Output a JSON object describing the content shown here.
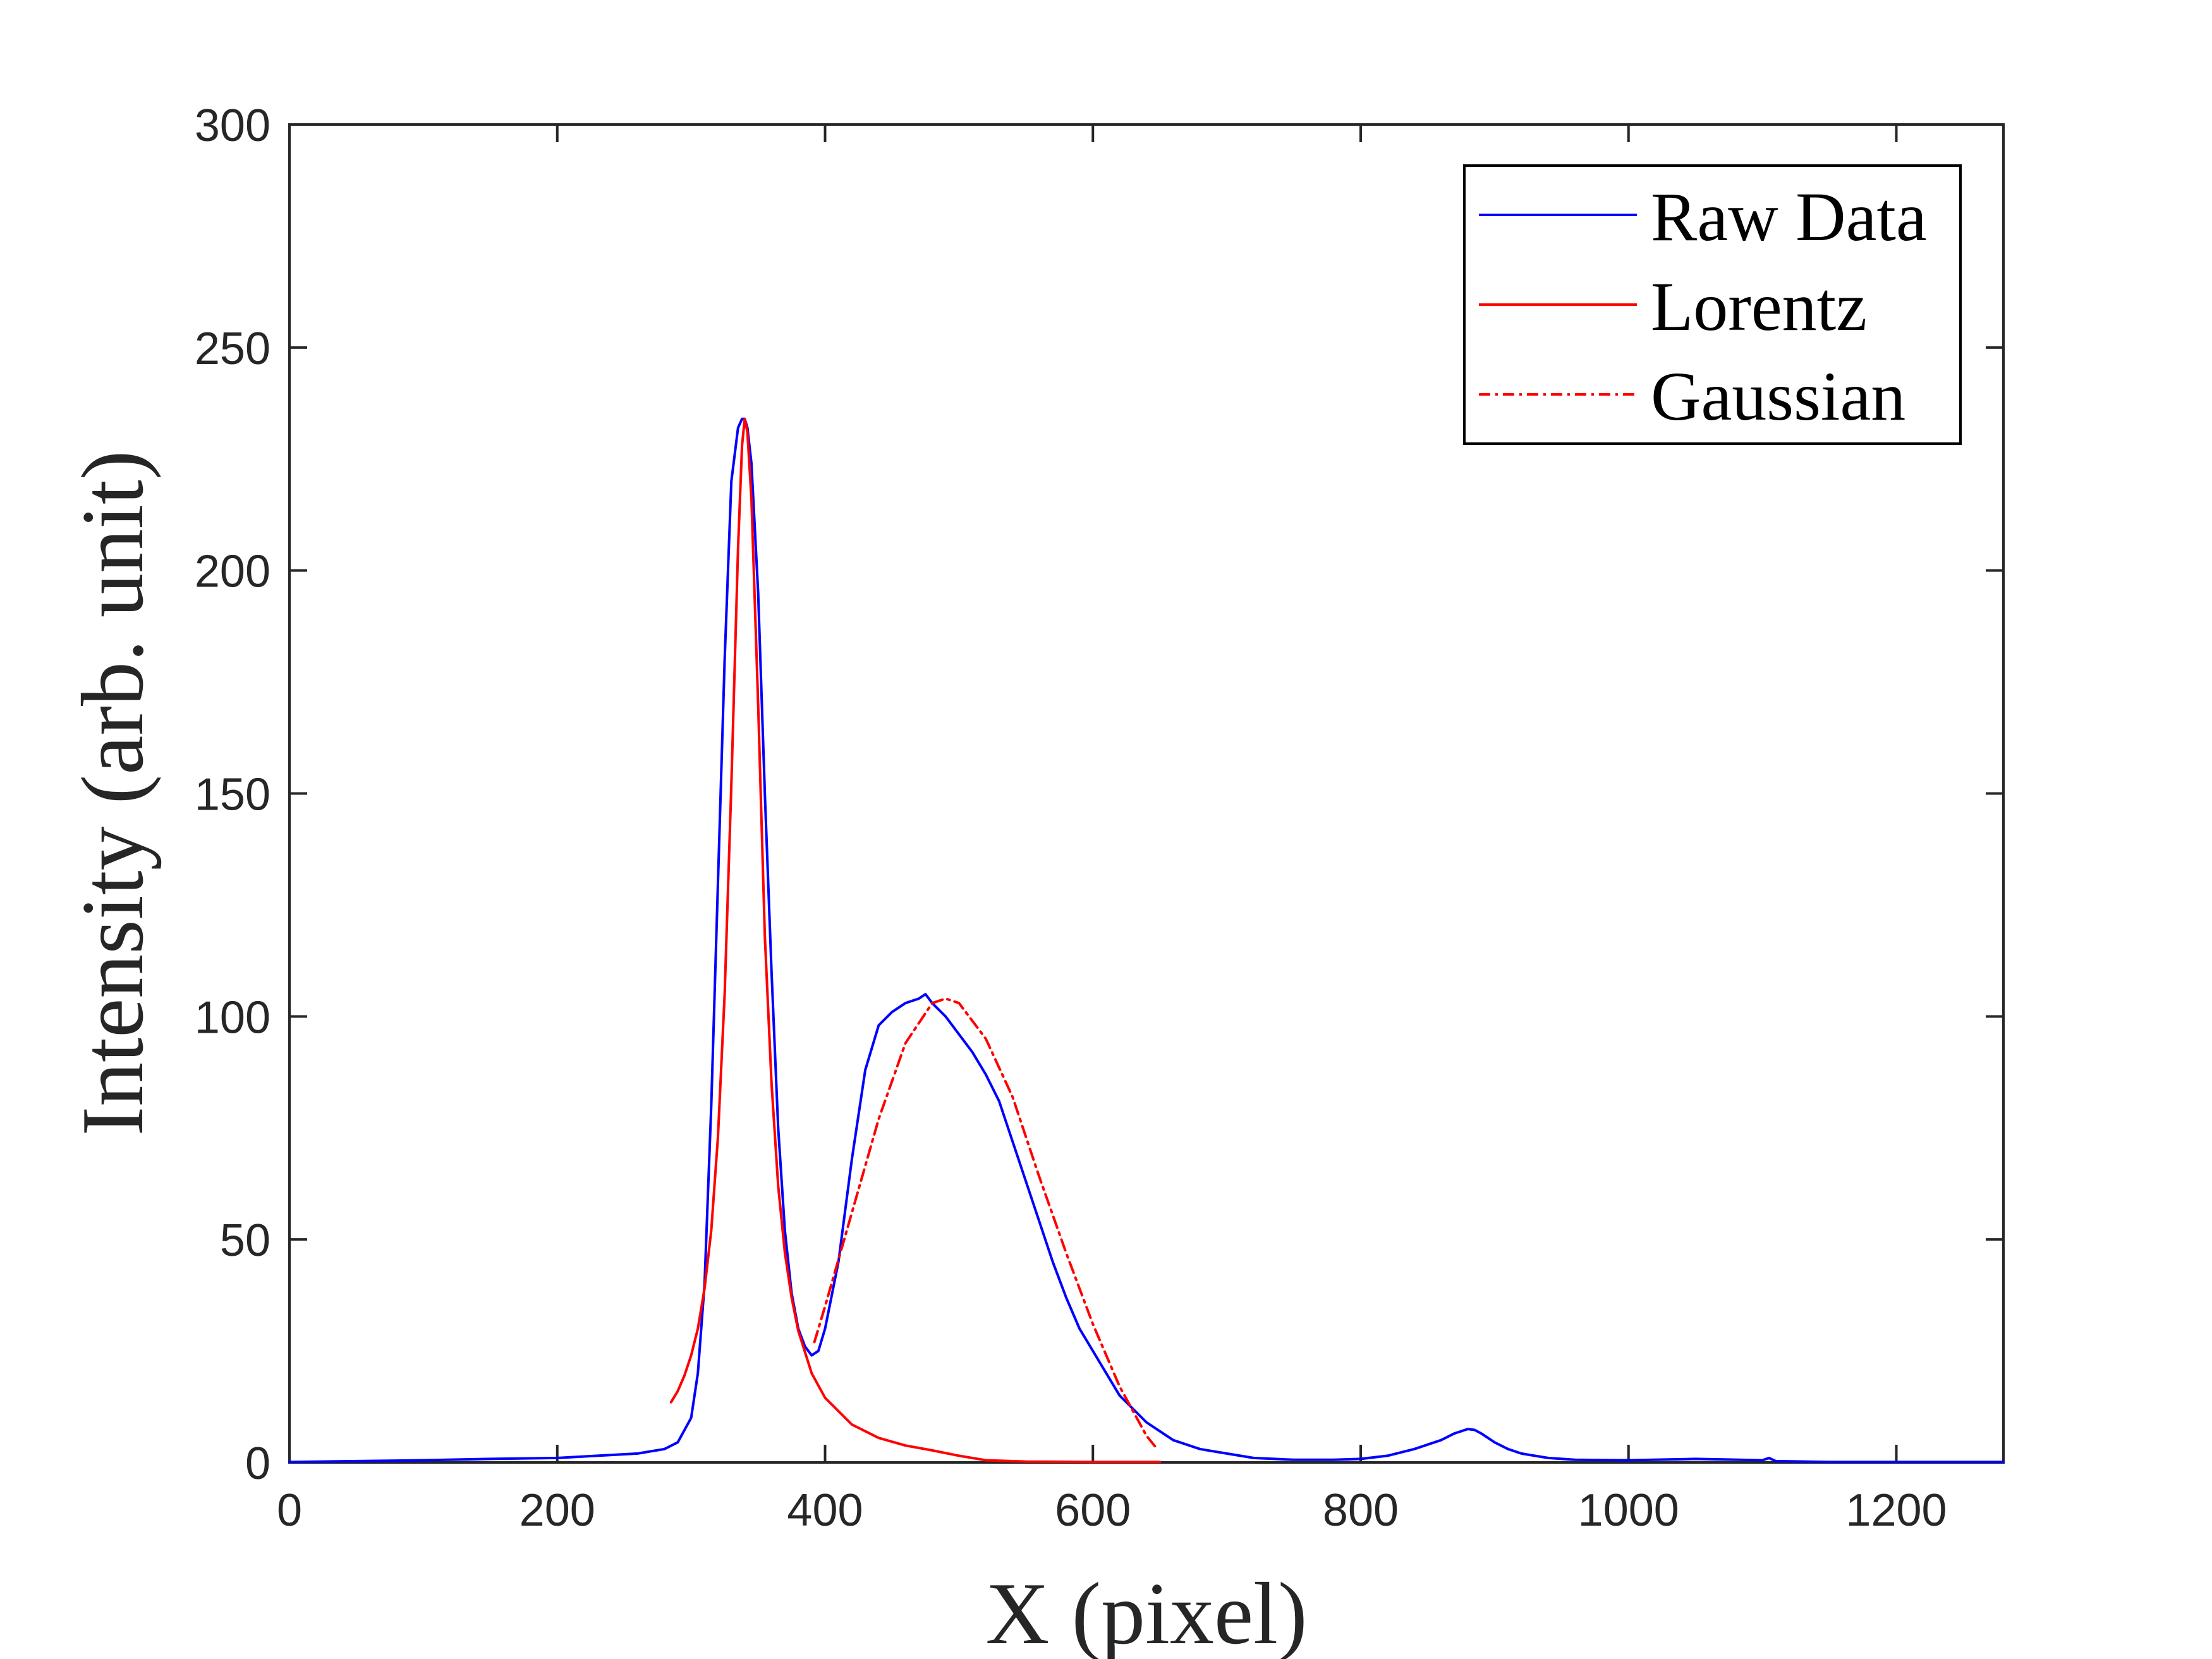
{
  "chart_data": {
    "type": "line",
    "xlabel": "X (pixel)",
    "ylabel": "Intensity (arb. unit)",
    "xlim": [
      0,
      1280
    ],
    "ylim": [
      0,
      300
    ],
    "xticks": [
      0,
      200,
      400,
      600,
      800,
      1000,
      1200
    ],
    "yticks": [
      0,
      50,
      100,
      150,
      200,
      250,
      300
    ],
    "xtick_labels": [
      "0",
      "200",
      "400",
      "600",
      "800",
      "1000",
      "1200"
    ],
    "ytick_labels": [
      "0",
      "50",
      "100",
      "150",
      "200",
      "250",
      "300"
    ],
    "grid": false,
    "legend_position": "top-right",
    "series": [
      {
        "name": "Raw Data",
        "color": "#0000ff",
        "style": "solid",
        "x": [
          0,
          50,
          100,
          150,
          200,
          230,
          260,
          280,
          290,
          300,
          305,
          310,
          315,
          320,
          325,
          330,
          335,
          338,
          340,
          342,
          345,
          350,
          355,
          360,
          365,
          370,
          375,
          380,
          385,
          390,
          395,
          400,
          410,
          420,
          430,
          440,
          450,
          460,
          470,
          475,
          480,
          490,
          500,
          510,
          520,
          530,
          540,
          550,
          560,
          570,
          580,
          590,
          600,
          610,
          620,
          640,
          660,
          680,
          700,
          720,
          750,
          780,
          800,
          820,
          840,
          860,
          870,
          880,
          885,
          890,
          900,
          910,
          920,
          940,
          960,
          1000,
          1050,
          1100,
          1105,
          1110,
          1150,
          1200,
          1280
        ],
        "y": [
          0.1,
          0.3,
          0.5,
          0.8,
          1.0,
          1.5,
          2.0,
          3.0,
          4.5,
          10,
          20,
          40,
          80,
          130,
          180,
          220,
          232,
          234,
          234,
          232,
          224,
          195,
          150,
          110,
          75,
          52,
          38,
          30,
          26,
          24,
          25,
          30,
          45,
          68,
          88,
          98,
          101,
          103,
          104,
          105,
          103,
          100,
          96,
          92,
          87,
          81,
          72,
          63,
          54,
          45,
          37,
          30,
          25,
          20,
          15,
          9,
          5,
          3,
          2,
          1,
          0.6,
          0.6,
          0.8,
          1.5,
          3,
          5,
          6.5,
          7.5,
          7.3,
          6.5,
          4.5,
          3,
          2,
          1,
          0.6,
          0.5,
          0.8,
          0.5,
          1.0,
          0.3,
          0.1,
          0.1,
          0.1
        ]
      },
      {
        "name": "Lorentz",
        "color": "#ff0000",
        "style": "solid",
        "x": [
          285,
          290,
          295,
          300,
          305,
          310,
          315,
          320,
          325,
          330,
          335,
          338,
          340,
          342,
          345,
          350,
          355,
          360,
          365,
          370,
          375,
          380,
          390,
          400,
          420,
          440,
          460,
          480,
          500,
          520,
          550,
          600,
          650
        ],
        "y": [
          13.5,
          16,
          19.5,
          24,
          30,
          39,
          52,
          73,
          105,
          152,
          205,
          228,
          234,
          231,
          216,
          170,
          118,
          85,
          62,
          47,
          37,
          29.5,
          20,
          14.5,
          8.5,
          5.5,
          3.8,
          2.7,
          1.5,
          0.5,
          0.2,
          0.1,
          0.1
        ]
      },
      {
        "name": "Gaussian",
        "color": "#ff0000",
        "style": "dash-dot",
        "x": [
          392,
          400,
          420,
          440,
          460,
          480,
          490,
          500,
          520,
          540,
          560,
          580,
          600,
          620,
          640,
          648
        ],
        "y": [
          27,
          35,
          56,
          77,
          94,
          103,
          104,
          103,
          95,
          82,
          64,
          47,
          31,
          17,
          6,
          3
        ]
      }
    ]
  }
}
